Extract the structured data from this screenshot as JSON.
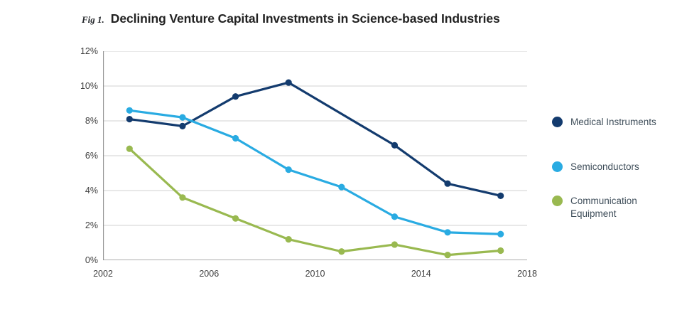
{
  "figure": {
    "label": "Fig 1.",
    "title": "Declining Venture Capital Investments in Science-based Industries"
  },
  "chart_data": {
    "type": "line",
    "title": "Declining Venture Capital Investments in Science-based Industries",
    "xlabel": "",
    "ylabel": "",
    "x": [
      2003,
      2005,
      2007,
      2009,
      2011,
      2013,
      2015,
      2017
    ],
    "series": [
      {
        "name": "Medical Instruments",
        "color": "#133b6e",
        "values": [
          8.1,
          7.7,
          9.4,
          10.2,
          null,
          6.6,
          4.4,
          3.7
        ]
      },
      {
        "name": "Semiconductors",
        "color": "#29abe2",
        "values": [
          8.6,
          8.2,
          7.0,
          5.2,
          4.2,
          2.5,
          1.6,
          1.5
        ]
      },
      {
        "name": "Communication Equipment",
        "color": "#99b950",
        "values": [
          6.4,
          3.6,
          2.4,
          1.2,
          0.5,
          0.9,
          0.3,
          0.55
        ]
      }
    ],
    "xlim": [
      2002,
      2018
    ],
    "ylim": [
      0,
      12
    ],
    "x_ticks": [
      "2002",
      "2006",
      "2010",
      "2014",
      "2018"
    ],
    "x_tick_years": [
      2002,
      2006,
      2010,
      2014,
      2018
    ],
    "y_ticks": [
      "12%",
      "10%",
      "8%",
      "6%",
      "4%",
      "2%",
      "0%"
    ],
    "y_tick_values": [
      12,
      10,
      8,
      6,
      4,
      2,
      0
    ],
    "grid": true,
    "legend_position": "right",
    "note": "Medical Instruments has no marker at 2011; line drawn straight 2009-2013"
  },
  "legend": {
    "items": [
      {
        "label": "Medical Instruments",
        "color": "#133b6e"
      },
      {
        "label": "Semiconductors",
        "color": "#29abe2"
      },
      {
        "label": "Communication Equipment",
        "color": "#99b950"
      }
    ]
  },
  "colors": {
    "grid": "#d2d2d2",
    "axis": "#909090",
    "tick_text": "#3f3f3f",
    "legend_text": "#3f4e5a",
    "title_text": "#222222"
  }
}
